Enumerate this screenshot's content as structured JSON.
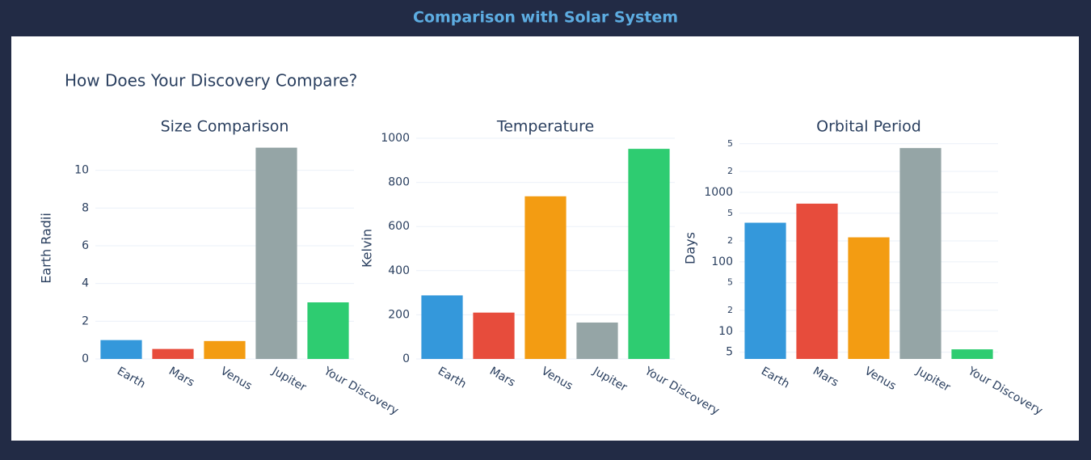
{
  "header": {
    "title": "Comparison with Solar System"
  },
  "figure_title": "How Does Your Discovery Compare?",
  "chart_data": [
    {
      "type": "bar",
      "title": "Size Comparison",
      "y_label": "Earth Radii",
      "categories": [
        "Earth",
        "Mars",
        "Venus",
        "Jupiter",
        "Your Discovery"
      ],
      "values": [
        1,
        0.53,
        0.95,
        11.2,
        3
      ],
      "colors": [
        "#3498db",
        "#e74c3c",
        "#f39c12",
        "#95a5a6",
        "#2ecc71"
      ],
      "ylim": [
        0,
        11.7
      ],
      "yticks": [
        0,
        2,
        4,
        6,
        8,
        10
      ],
      "grid": true
    },
    {
      "type": "bar",
      "title": "Temperature",
      "y_label": "Kelvin",
      "categories": [
        "Earth",
        "Mars",
        "Venus",
        "Jupiter",
        "Your Discovery"
      ],
      "values": [
        288,
        210,
        737,
        165,
        952
      ],
      "colors": [
        "#3498db",
        "#e74c3c",
        "#f39c12",
        "#95a5a6",
        "#2ecc71"
      ],
      "ylim": [
        0,
        1000
      ],
      "yticks": [
        0,
        200,
        400,
        600,
        800,
        1000
      ],
      "grid": true
    },
    {
      "type": "bar",
      "title": "Orbital Period",
      "y_label": "Days",
      "log_scale": true,
      "categories": [
        "Earth",
        "Mars",
        "Venus",
        "Jupiter",
        "Your Discovery"
      ],
      "values": [
        365,
        687,
        225,
        4333,
        5.5
      ],
      "colors": [
        "#3498db",
        "#e74c3c",
        "#f39c12",
        "#95a5a6",
        "#2ecc71"
      ],
      "ylim": [
        4,
        6000
      ],
      "yticks": [
        5,
        10,
        {
          "value": 20,
          "label": "2"
        },
        {
          "value": 50,
          "label": "5"
        },
        100,
        {
          "value": 200,
          "label": "2"
        },
        {
          "value": 500,
          "label": "5"
        },
        1000,
        {
          "value": 2000,
          "label": "2"
        },
        {
          "value": 5000,
          "label": "5"
        }
      ],
      "grid": true
    }
  ]
}
